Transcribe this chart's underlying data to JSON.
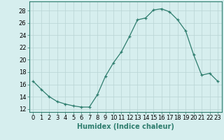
{
  "x": [
    0,
    1,
    2,
    3,
    4,
    5,
    6,
    7,
    8,
    9,
    10,
    11,
    12,
    13,
    14,
    15,
    16,
    17,
    18,
    19,
    20,
    21,
    22,
    23
  ],
  "y": [
    16.5,
    15.2,
    14.0,
    13.2,
    12.8,
    12.5,
    12.3,
    12.3,
    14.3,
    17.3,
    19.5,
    21.3,
    23.8,
    26.5,
    26.8,
    28.1,
    28.3,
    27.8,
    26.5,
    24.7,
    20.8,
    17.5,
    17.8,
    16.5
  ],
  "line_color": "#2e7d6e",
  "marker": "+",
  "marker_size": 3,
  "bg_color": "#d6eeee",
  "grid_color": "#b8d4d4",
  "xlabel": "Humidex (Indice chaleur)",
  "ylabel_ticks": [
    12,
    14,
    16,
    18,
    20,
    22,
    24,
    26,
    28
  ],
  "xlim": [
    -0.5,
    23.5
  ],
  "ylim": [
    11.5,
    29.5
  ],
  "tick_font_size": 6,
  "label_font_size": 7
}
